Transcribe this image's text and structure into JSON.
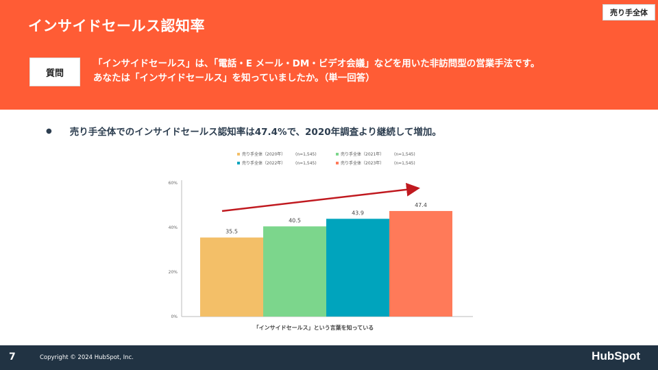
{
  "header": {
    "title": "インサイドセールス認知率",
    "segment_badge": "売り手全体"
  },
  "question": {
    "label": "質問",
    "line1": "「インサイドセールス」は、「電話・E メール・DM・ビデオ会議」などを用いた非訪問型の営業手法です。",
    "line2": "あなたは「インサイドセールス」を知っていましたか。（単一回答）"
  },
  "summary": "売り手全体でのインサイドセールス認知率は47.4%で、2020年調査より継続して増加。",
  "chart_data": {
    "type": "bar",
    "categories": [
      "「インサイドセールス」という言葉を知っている"
    ],
    "series": [
      {
        "name": "売り手全体（2020年）",
        "n": "(n=1,545)",
        "values": [
          35.5
        ],
        "color": "#f3bf68"
      },
      {
        "name": "売り手全体（2021年）",
        "n": "(n=1,545)",
        "values": [
          40.5
        ],
        "color": "#7cd68c"
      },
      {
        "name": "売り手全体（2022年）",
        "n": "(n=1,545)",
        "values": [
          43.9
        ],
        "color": "#00a4bd"
      },
      {
        "name": "売り手全体（2023年）",
        "n": "(n=1,545)",
        "values": [
          47.4
        ],
        "color": "#ff7a59"
      }
    ],
    "yticks": [
      "0%",
      "20%",
      "40%",
      "60%"
    ],
    "ylim": [
      0,
      60
    ],
    "xlabel": "「インサイドセールス」という言葉を知っている",
    "legend_position": "top",
    "trend_arrow": true,
    "arrow_color": "#c0191f"
  },
  "footer": {
    "page_number": "7",
    "copyright": "Copyright © 2024 HubSpot, Inc.",
    "brand": "HubSpot"
  }
}
